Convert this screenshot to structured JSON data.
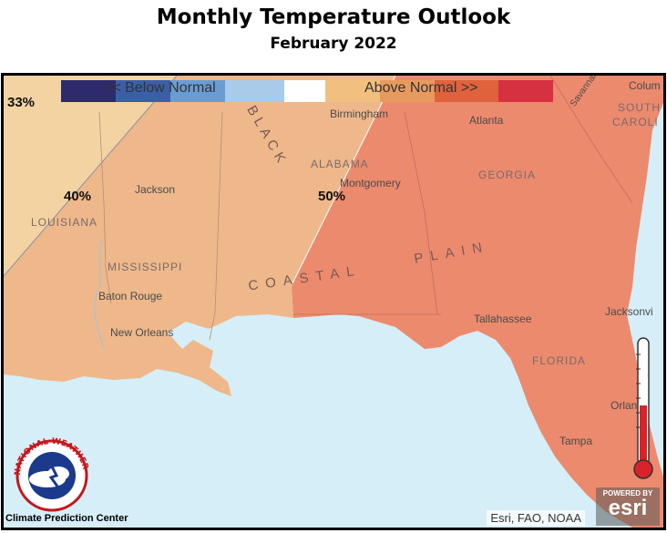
{
  "header": {
    "title": "Monthly Temperature Outlook",
    "subtitle": "February 2022"
  },
  "legend": {
    "below_label": "<<    Below Normal",
    "above_label": "Above Normal     >>",
    "colors": [
      "#2d2a6e",
      "#3a5fa8",
      "#6a9cd4",
      "#a9cbe9",
      "#ffffff",
      "#f1bf7e",
      "#e79a5e",
      "#e0623c",
      "#d63141"
    ]
  },
  "probabilities": {
    "p33": "33%",
    "p40": "40%",
    "p50": "50%"
  },
  "map": {
    "colors": {
      "water": "#d6eef8",
      "p33": "#f3d3a2",
      "p40": "#eeb88b",
      "p50": "#ec8a6e"
    },
    "cities": [
      "Birmingham",
      "Atlanta",
      "Jackson",
      "Montgomery",
      "Baton Rouge",
      "New Orleans",
      "Tallahassee",
      "Jacksonvi",
      "Orlando",
      "Tampa",
      "Colum",
      "Savannah"
    ],
    "states": [
      "ALABAMA",
      "GEORGIA",
      "LOUISIANA",
      "MISSISSIPPI",
      "FLORIDA",
      "SOUTH",
      "CAROLI"
    ],
    "regions": [
      "BLACK",
      "COASTAL",
      "PLAIN"
    ]
  },
  "attribution": "Esri, FAO, NOAA",
  "esri_logo": {
    "powered": "POWERED BY",
    "name": "esri"
  },
  "footer": {
    "agency": "Climate Prediction Center",
    "logo_text": "NATIONAL WEATHER SERVICE"
  }
}
